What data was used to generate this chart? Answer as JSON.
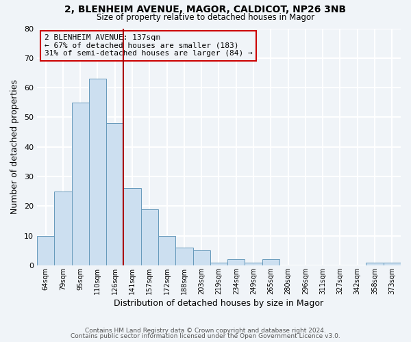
{
  "title": "2, BLENHEIM AVENUE, MAGOR, CALDICOT, NP26 3NB",
  "subtitle": "Size of property relative to detached houses in Magor",
  "xlabel": "Distribution of detached houses by size in Magor",
  "ylabel": "Number of detached properties",
  "bar_labels": [
    "64sqm",
    "79sqm",
    "95sqm",
    "110sqm",
    "126sqm",
    "141sqm",
    "157sqm",
    "172sqm",
    "188sqm",
    "203sqm",
    "219sqm",
    "234sqm",
    "249sqm",
    "265sqm",
    "280sqm",
    "296sqm",
    "311sqm",
    "327sqm",
    "342sqm",
    "358sqm",
    "373sqm"
  ],
  "bar_values": [
    10,
    25,
    55,
    63,
    48,
    26,
    19,
    10,
    6,
    5,
    1,
    2,
    1,
    2,
    0,
    0,
    0,
    0,
    0,
    1,
    1
  ],
  "bar_color": "#ccdff0",
  "bar_edge_color": "#6699bb",
  "highlight_line_color": "#aa0000",
  "annotation_text": "2 BLENHEIM AVENUE: 137sqm\n← 67% of detached houses are smaller (183)\n31% of semi-detached houses are larger (84) →",
  "annotation_box_edge_color": "#cc0000",
  "ylim": [
    0,
    80
  ],
  "yticks": [
    0,
    10,
    20,
    30,
    40,
    50,
    60,
    70,
    80
  ],
  "background_color": "#f0f4f8",
  "grid_color": "#d0d8e4",
  "footer_line1": "Contains HM Land Registry data © Crown copyright and database right 2024.",
  "footer_line2": "Contains public sector information licensed under the Open Government Licence v3.0."
}
